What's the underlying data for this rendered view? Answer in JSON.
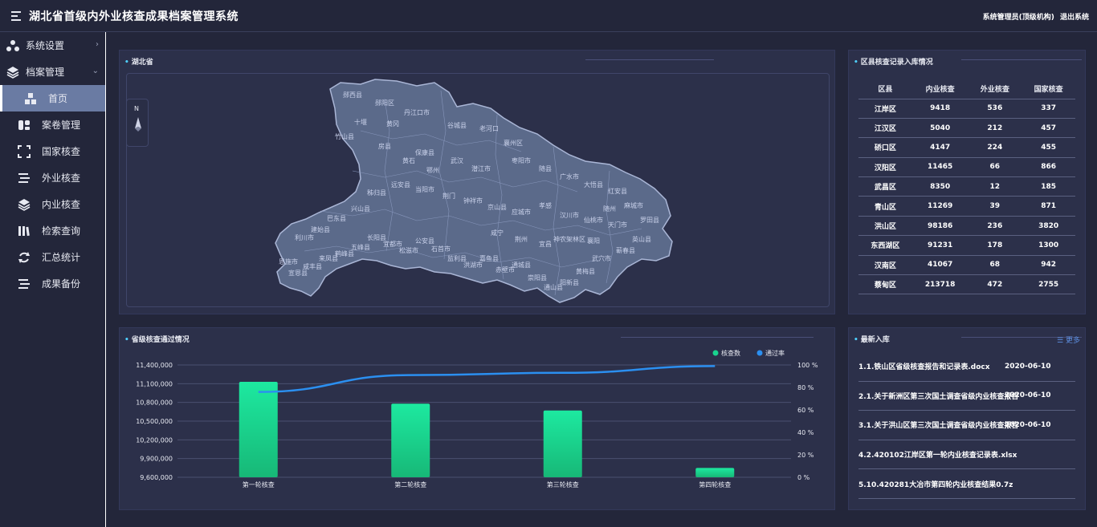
{
  "app": {
    "title": "湖北省首级内外业核查成果档案管理系统"
  },
  "user": {
    "name": "系统管理员(顶级机构)",
    "logout": "退出系统"
  },
  "sidebar": {
    "items": [
      {
        "label": "系统设置",
        "icon": "settings-network-icon",
        "level": "top",
        "arrow": "›"
      },
      {
        "label": "档案管理",
        "icon": "layers-icon",
        "level": "top",
        "arrow": "⌄"
      },
      {
        "label": "首页",
        "icon": "cubes-icon",
        "level": "sub",
        "active": true
      },
      {
        "label": "案卷管理",
        "icon": "folder-icon",
        "level": "sub"
      },
      {
        "label": "国家核查",
        "icon": "focus-icon",
        "level": "sub"
      },
      {
        "label": "外业核查",
        "icon": "list-icon",
        "level": "sub"
      },
      {
        "label": "内业核查",
        "icon": "layers-icon",
        "level": "sub"
      },
      {
        "label": "检索查询",
        "icon": "library-icon",
        "level": "sub"
      },
      {
        "label": "汇总统计",
        "icon": "refresh-icon",
        "level": "sub"
      },
      {
        "label": "成果备份",
        "icon": "list-icon",
        "level": "sub"
      }
    ]
  },
  "map": {
    "title": "湖北省",
    "compass_label": "N",
    "labels": [
      "郧西县",
      "郧阳区",
      "丹江口市",
      "十堰",
      "竹山县",
      "房县",
      "保康县",
      "谷城县",
      "老河口",
      "襄州区",
      "枣阳市",
      "随县",
      "广水市",
      "大悟县",
      "红安县",
      "麻城市",
      "罗田县",
      "英山县",
      "蕲春县",
      "武穴市",
      "黄梅县",
      "阳新县",
      "通山县",
      "崇阳县",
      "通城县",
      "赤壁市",
      "嘉鱼县",
      "洪湖市",
      "监利县",
      "石首市",
      "公安县",
      "松滋市",
      "宜都市",
      "长阳县",
      "五峰县",
      "鹤峰县",
      "来凤县",
      "咸丰县",
      "宣恩县",
      "恩施市",
      "利川市",
      "建始县",
      "巴东县",
      "兴山县",
      "秭归县",
      "远安县",
      "当阳市",
      "荆门",
      "钟祥市",
      "京山县",
      "应城市",
      "孝感",
      "汉川市",
      "仙桃市",
      "天门市",
      "潜江市",
      "武汉",
      "鄂州",
      "黄石",
      "黄冈",
      "咸宁",
      "荆州",
      "宜昌",
      "神农架林区",
      "襄阳",
      "随州"
    ]
  },
  "county_table": {
    "title": "区县核查记录入库情况",
    "headers": [
      "区县",
      "内业核查",
      "外业核查",
      "国家核查"
    ],
    "rows": [
      [
        "江岸区",
        "9418",
        "536",
        "337"
      ],
      [
        "江汉区",
        "5040",
        "212",
        "457"
      ],
      [
        "硚口区",
        "4147",
        "224",
        "455"
      ],
      [
        "汉阳区",
        "11465",
        "66",
        "866"
      ],
      [
        "武昌区",
        "8350",
        "12",
        "185"
      ],
      [
        "青山区",
        "11269",
        "39",
        "871"
      ],
      [
        "洪山区",
        "98186",
        "236",
        "3820"
      ],
      [
        "东西湖区",
        "91231",
        "178",
        "1300"
      ],
      [
        "汉南区",
        "41067",
        "68",
        "942"
      ],
      [
        "蔡甸区",
        "213718",
        "472",
        "2755"
      ]
    ]
  },
  "chart_data": {
    "type": "bar",
    "title": "省级核查通过情况",
    "categories": [
      "第一轮核查",
      "第二轮核查",
      "第三轮核查",
      "第四轮核查"
    ],
    "series": [
      {
        "name": "核查数",
        "type": "bar",
        "values": [
          11130000,
          10780000,
          10670000,
          9750000
        ],
        "color": "#19d38f"
      },
      {
        "name": "通过率",
        "type": "line",
        "values": [
          76,
          91,
          93,
          99
        ],
        "color": "#2b8ff0"
      }
    ],
    "ylim": [
      9600000,
      11400000
    ],
    "yticks": [
      "11,400,000",
      "11,100,000",
      "10,800,000",
      "10,500,000",
      "10,200,000",
      "9,900,000",
      "9,600,000"
    ],
    "y2lim": [
      0,
      100
    ],
    "y2ticks": [
      "100 %",
      "80 %",
      "60 %",
      "40 %",
      "20 %",
      "0 %"
    ],
    "legend": "top-right"
  },
  "news": {
    "title": "最新入库",
    "more_label": "更多",
    "items": [
      {
        "title": "1.1.铁山区省级核查报告和记录表.docx",
        "date": "2020-06-10"
      },
      {
        "title": "2.1.关于新洲区第三次国土调查省级内业核查报告",
        "date": "2020-06-10"
      },
      {
        "title": "3.1.关于洪山区第三次国土调查省级内业核查报告",
        "date": "2020-06-10"
      },
      {
        "title": "4.2.420102江岸区第一轮内业核查记录表.xlsx",
        "date": ""
      },
      {
        "title": "5.10.420281大冶市第四轮内业核查结果0.7z",
        "date": ""
      }
    ]
  }
}
